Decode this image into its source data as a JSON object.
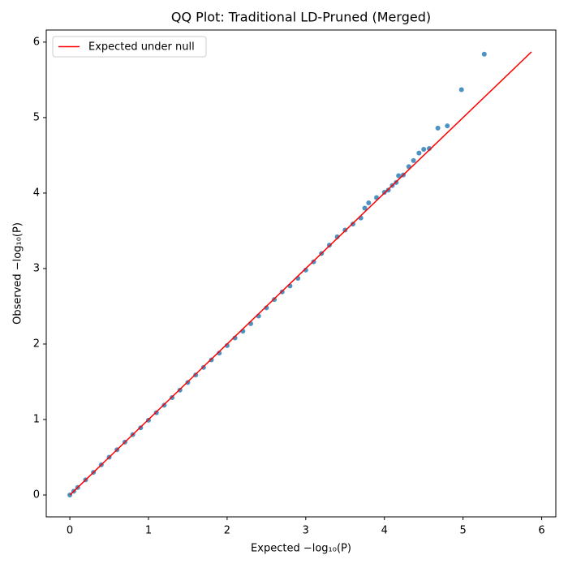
{
  "chart_data": {
    "type": "scatter",
    "title": "QQ Plot: Traditional LD-Pruned (Merged)",
    "x_label": "Expected −log₁₀(P)",
    "y_label": "Observed −log₁₀(P)",
    "color": "#1f77b4",
    "x": [
      0,
      0.05,
      0.1,
      0.2,
      0.3,
      0.4,
      0.5,
      0.6,
      0.7,
      0.8,
      0.9,
      1.0,
      1.1,
      1.2,
      1.3,
      1.4,
      1.5,
      1.6,
      1.7,
      1.8,
      1.9,
      2.0,
      2.1,
      2.2,
      2.3,
      2.4,
      2.5,
      2.6,
      2.7,
      2.8,
      2.9,
      3.0,
      3.1,
      3.2,
      3.3,
      3.4,
      3.5,
      3.6,
      3.7,
      3.75,
      3.8,
      3.9,
      4.0,
      4.05,
      4.1,
      4.15,
      4.18,
      4.24,
      4.31,
      4.37,
      4.44,
      4.5,
      4.57,
      4.68,
      4.8,
      4.98,
      5.27
    ],
    "y": [
      0,
      0.05,
      0.1,
      0.2,
      0.3,
      0.4,
      0.5,
      0.6,
      0.7,
      0.8,
      0.89,
      0.99,
      1.09,
      1.19,
      1.29,
      1.39,
      1.49,
      1.59,
      1.69,
      1.79,
      1.88,
      1.98,
      2.08,
      2.17,
      2.27,
      2.37,
      2.48,
      2.59,
      2.69,
      2.77,
      2.87,
      2.98,
      3.09,
      3.2,
      3.31,
      3.42,
      3.51,
      3.59,
      3.67,
      3.8,
      3.87,
      3.94,
      4.01,
      4.04,
      4.1,
      4.14,
      4.23,
      4.24,
      4.35,
      4.43,
      4.53,
      4.58,
      4.59,
      4.86,
      4.89,
      5.37,
      5.84
    ],
    "reference_line": {
      "name": "Expected under null",
      "color": "#ff0000",
      "x": [
        0,
        5.87
      ],
      "y": [
        0,
        5.87
      ]
    },
    "legend": "upper left",
    "xlim": [
      -0.3,
      6.18
    ],
    "ylim": [
      -0.29,
      6.16
    ],
    "xticks": [
      0,
      1,
      2,
      3,
      4,
      5,
      6
    ],
    "yticks": [
      0,
      1,
      2,
      3,
      4,
      5,
      6
    ]
  }
}
